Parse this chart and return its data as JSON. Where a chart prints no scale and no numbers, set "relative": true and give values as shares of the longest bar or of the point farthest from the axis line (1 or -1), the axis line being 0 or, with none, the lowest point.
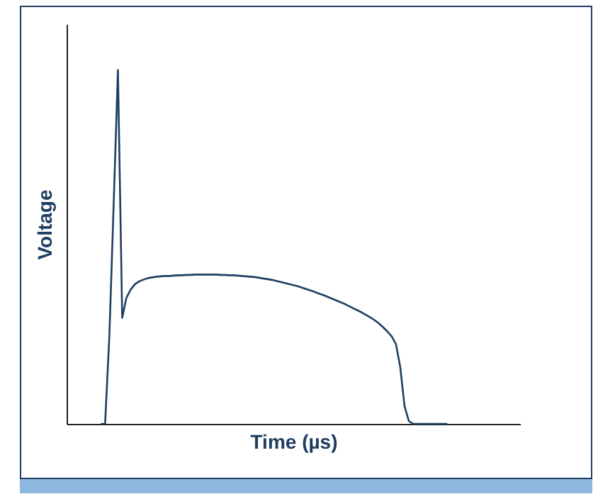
{
  "chart_data": {
    "type": "line",
    "xlabel": "Time (µs)",
    "ylabel": "Voltage",
    "relative": true,
    "grid": false,
    "legend": false,
    "marker": "none",
    "line_style": "solid",
    "categories": [
      null,
      null,
      null,
      null,
      null,
      null,
      null,
      null,
      null,
      null,
      null,
      null,
      null,
      null,
      null,
      null,
      null,
      null,
      null,
      null,
      null,
      null,
      null,
      null,
      null,
      null,
      null,
      null,
      null,
      null,
      null,
      null,
      null,
      null,
      null,
      null,
      null,
      null,
      null,
      null,
      null,
      null,
      null,
      null,
      null,
      null,
      null,
      null,
      null,
      null,
      null,
      null,
      null,
      null,
      null,
      null,
      null,
      null,
      null,
      null,
      null,
      null,
      null,
      null,
      null,
      null,
      null,
      null,
      null,
      null,
      null,
      null,
      null,
      null,
      null,
      null,
      null,
      null,
      null,
      null,
      null,
      null,
      null,
      null,
      null,
      null,
      null,
      null,
      null,
      null,
      null,
      null,
      null,
      null,
      null,
      null,
      null,
      null,
      null,
      null,
      null,
      null,
      null,
      null,
      null,
      null,
      null
    ],
    "series": [
      {
        "color": "#1f3e62",
        "values": [
          null,
          null,
          null,
          null,
          null,
          null,
          null,
          null,
          0,
          0,
          0.25,
          0.62,
          1,
          0.3,
          0.357,
          0.38,
          0.395,
          0.403,
          0.408,
          0.412,
          0.414,
          0.416,
          0.417,
          0.418,
          0.418,
          0.419,
          0.42,
          0.42,
          0.421,
          0.421,
          0.422,
          0.422,
          0.422,
          0.422,
          0.422,
          0.422,
          0.421,
          0.421,
          0.42,
          0.42,
          0.419,
          0.418,
          0.417,
          0.416,
          0.415,
          0.413,
          0.411,
          0.409,
          0.407,
          0.404,
          0.401,
          0.398,
          0.395,
          0.392,
          0.389,
          0.385,
          0.381,
          0.377,
          0.373,
          0.368,
          0.364,
          0.359,
          0.354,
          0.349,
          0.344,
          0.339,
          0.333,
          0.327,
          0.321,
          0.315,
          0.308,
          0.301,
          0.293,
          0.284,
          0.273,
          0.261,
          0.247,
          0.225,
          0.16,
          0.05,
          0.008,
          0,
          0,
          0,
          0,
          0,
          0,
          0,
          0,
          0,
          null,
          null,
          null,
          null,
          null,
          null,
          null,
          null,
          null,
          null,
          null,
          null,
          null,
          null,
          null,
          null,
          null
        ]
      }
    ]
  }
}
